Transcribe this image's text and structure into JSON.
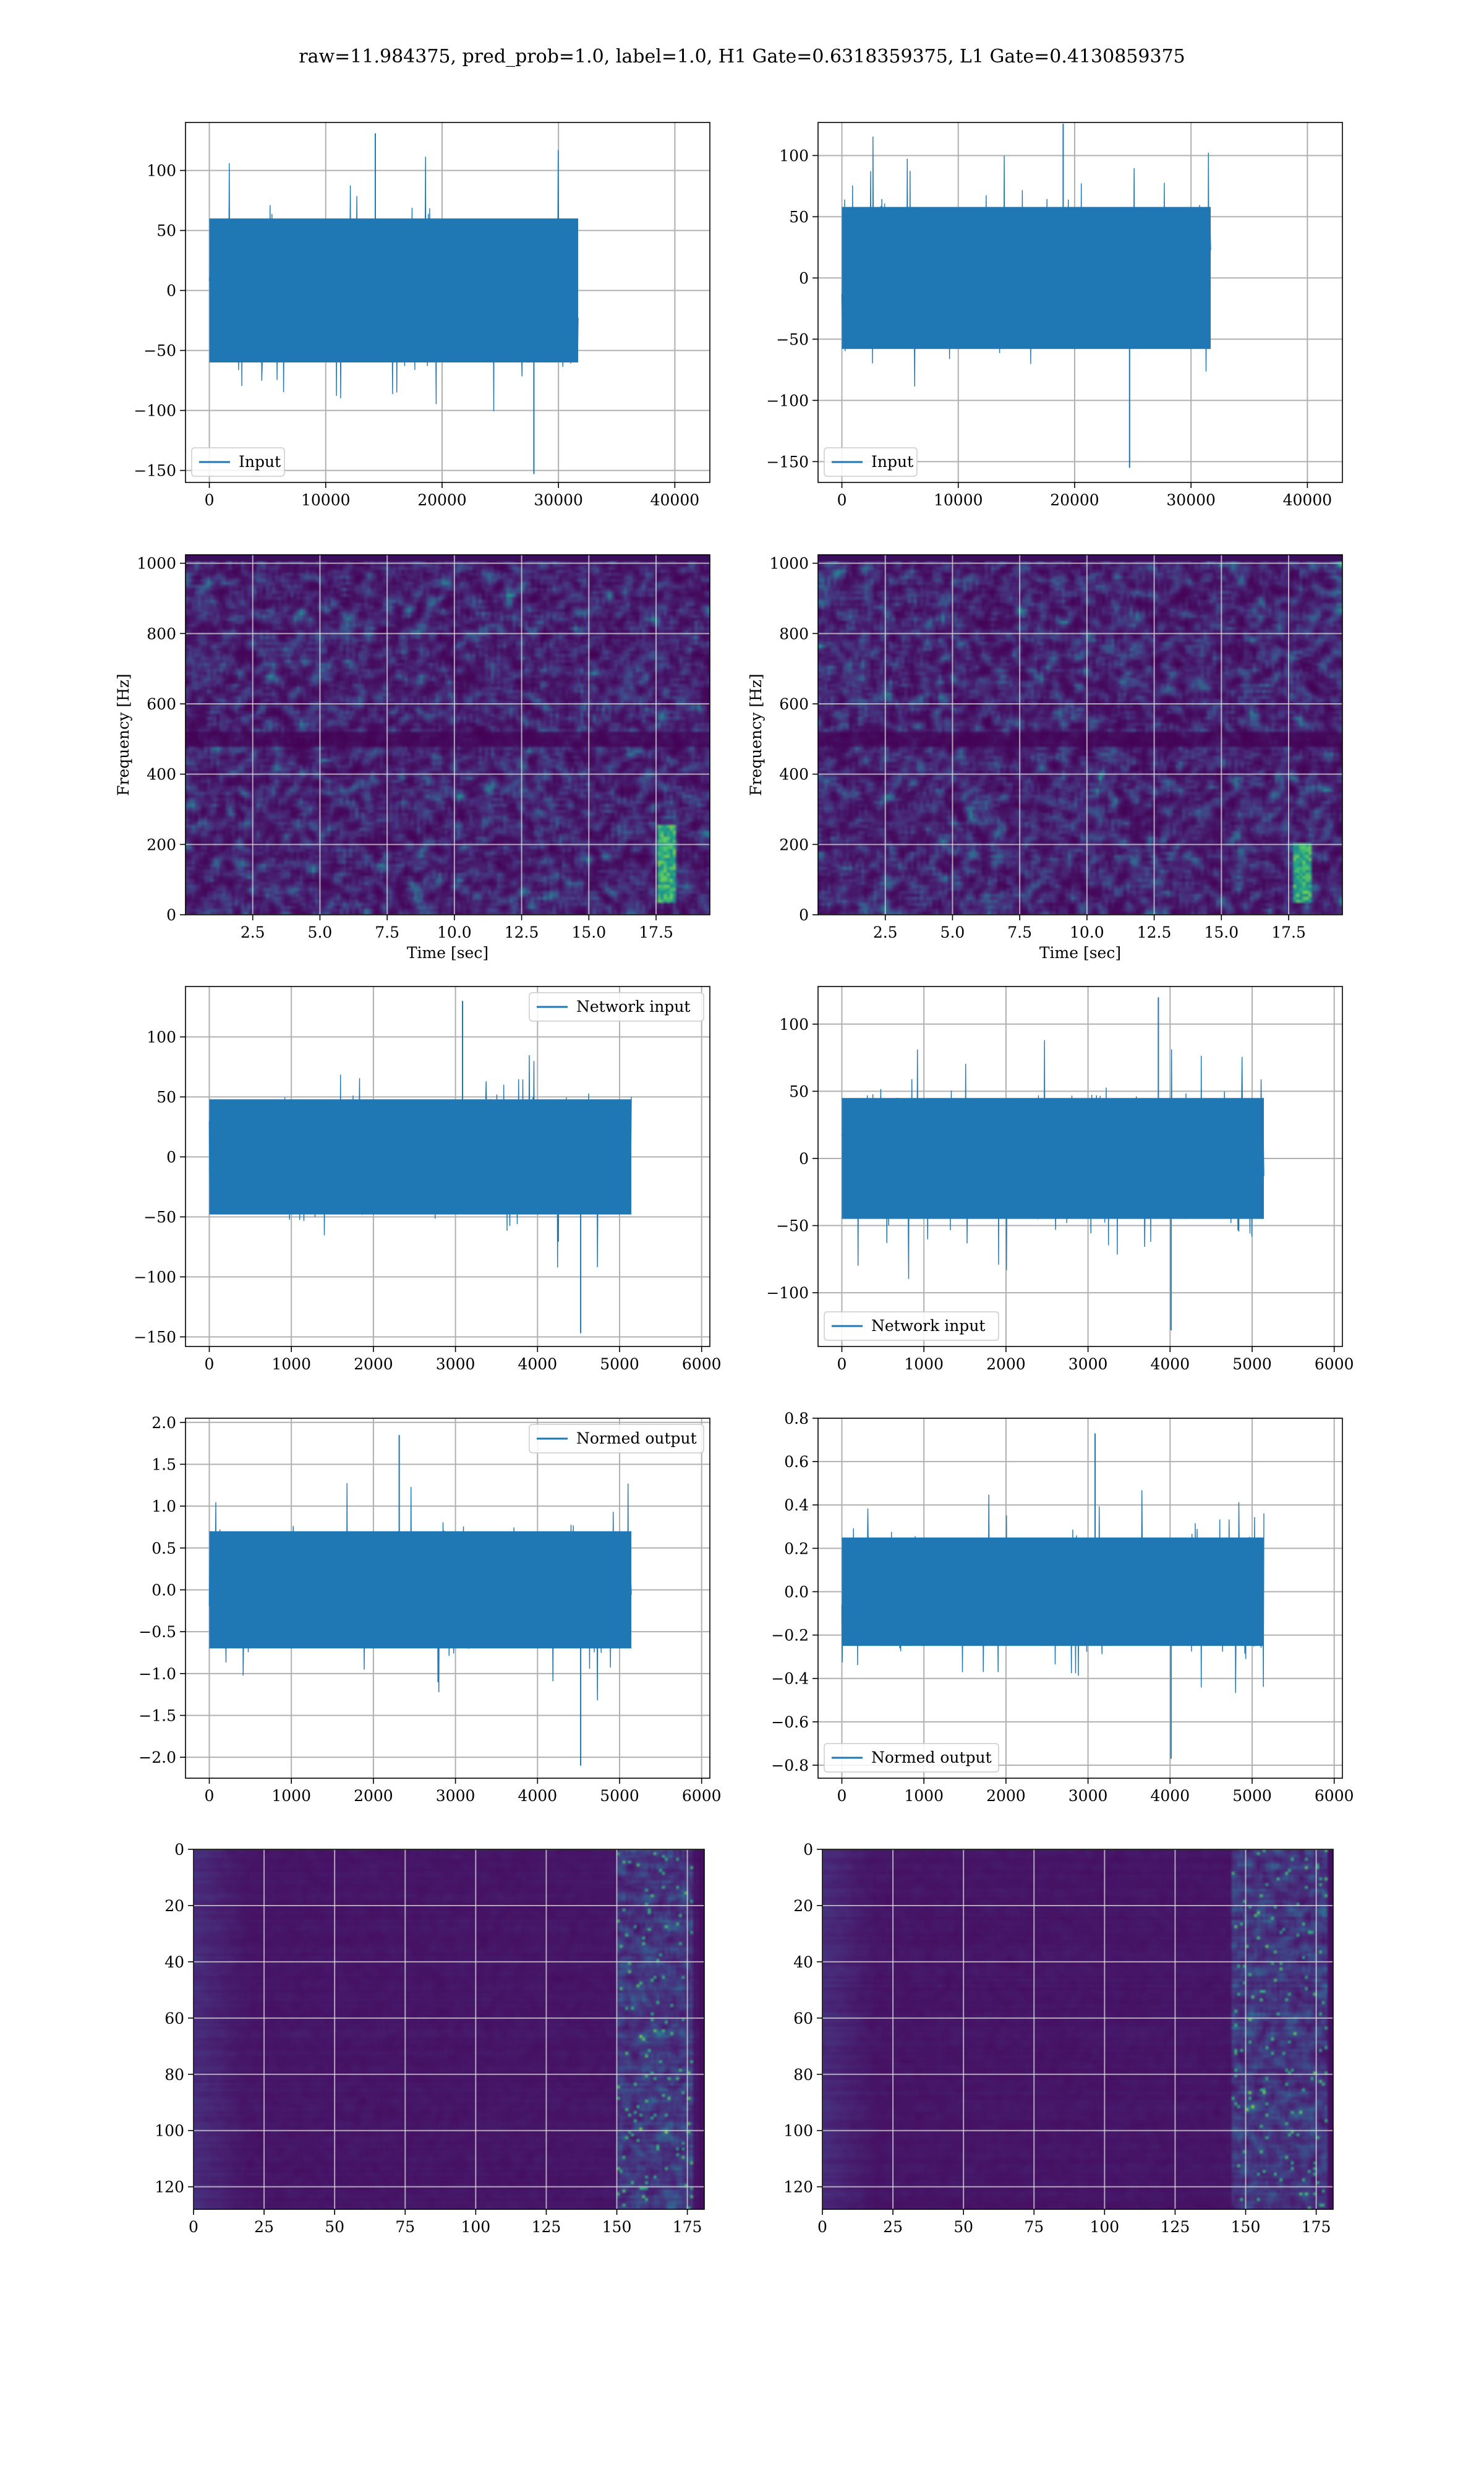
{
  "figure": {
    "suptitle": "raw=11.984375, pred_prob=1.0, label=1.0, H1 Gate=0.6318359375, L1 Gate=0.4130859375"
  },
  "colors": {
    "line": "#1f77b4",
    "grid": "#b0b0b0",
    "axes": "#000000"
  },
  "chart_data": [
    {
      "type": "line",
      "series": [
        {
          "name": "Input"
        }
      ],
      "xlim": [
        -2048,
        43008
      ],
      "ylim": [
        -160,
        140
      ],
      "xticks": [
        0,
        10000,
        20000,
        30000,
        40000
      ],
      "xticklabels": [
        "0",
        "10000",
        "20000",
        "30000",
        "40000"
      ],
      "yticks": [
        -150,
        -100,
        -50,
        0,
        50,
        100
      ],
      "yticklabels": [
        "−150",
        "−100",
        "−50",
        "0",
        "50",
        "100"
      ],
      "amplitude": {
        "core_abs": 60,
        "peak_max": 131,
        "peak_min": -153
      },
      "grid": true,
      "legend": "lower left",
      "xlabel": "",
      "ylabel": ""
    },
    {
      "type": "line",
      "series": [
        {
          "name": "Input"
        }
      ],
      "xlim": [
        -2048,
        43008
      ],
      "ylim": [
        -167,
        127
      ],
      "xticks": [
        0,
        10000,
        20000,
        30000,
        40000
      ],
      "xticklabels": [
        "0",
        "10000",
        "20000",
        "30000",
        "40000"
      ],
      "yticks": [
        -150,
        -100,
        -50,
        0,
        50,
        100
      ],
      "yticklabels": [
        "−150",
        "−100",
        "−50",
        "0",
        "50",
        "100"
      ],
      "amplitude": {
        "core_abs": 58,
        "peak_max": 126,
        "peak_min": -155
      },
      "grid": true,
      "legend": "lower left",
      "xlabel": "",
      "ylabel": ""
    },
    {
      "type": "heatmap",
      "colormap": "viridis",
      "xlim": [
        0,
        19.5
      ],
      "ylim": [
        0,
        1024
      ],
      "xticks": [
        2.5,
        5.0,
        7.5,
        10.0,
        12.5,
        15.0,
        17.5
      ],
      "xticklabels": [
        "2.5",
        "5.0",
        "7.5",
        "10.0",
        "12.5",
        "15.0",
        "17.5"
      ],
      "yticks": [
        0,
        200,
        400,
        600,
        800,
        1000
      ],
      "yticklabels": [
        "0",
        "200",
        "400",
        "600",
        "800",
        "1000"
      ],
      "xlabel": "Time [sec]",
      "ylabel": "Frequency [Hz]",
      "grid": true,
      "features": [
        {
          "kind": "dark band",
          "freq_hz": 500
        },
        {
          "kind": "bright track",
          "time_sec": 17.9,
          "freq_hz_range": [
            30,
            250
          ]
        }
      ]
    },
    {
      "type": "heatmap",
      "colormap": "viridis",
      "xlim": [
        0,
        19.5
      ],
      "ylim": [
        0,
        1024
      ],
      "xticks": [
        2.5,
        5.0,
        7.5,
        10.0,
        12.5,
        15.0,
        17.5
      ],
      "xticklabels": [
        "2.5",
        "5.0",
        "7.5",
        "10.0",
        "12.5",
        "15.0",
        "17.5"
      ],
      "yticks": [
        0,
        200,
        400,
        600,
        800,
        1000
      ],
      "yticklabels": [
        "0",
        "200",
        "400",
        "600",
        "800",
        "1000"
      ],
      "xlabel": "Time [sec]",
      "ylabel": "Frequency [Hz]",
      "grid": true,
      "features": [
        {
          "kind": "dark band",
          "freq_hz": 500
        },
        {
          "kind": "bright track",
          "time_sec": 18.1,
          "freq_hz_range": [
            30,
            200
          ]
        }
      ]
    },
    {
      "type": "line",
      "series": [
        {
          "name": "Network input"
        }
      ],
      "xlim": [
        -290,
        6100
      ],
      "ylim": [
        -158,
        142
      ],
      "xticks": [
        0,
        1000,
        2000,
        3000,
        4000,
        5000,
        6000
      ],
      "xticklabels": [
        "0",
        "1000",
        "2000",
        "3000",
        "4000",
        "5000",
        "6000"
      ],
      "yticks": [
        -150,
        -100,
        -50,
        0,
        50,
        100
      ],
      "yticklabels": [
        "−150",
        "−100",
        "−50",
        "0",
        "50",
        "100"
      ],
      "amplitude": {
        "core_abs": 48,
        "peak_max": 130,
        "peak_min": -147
      },
      "grid": true,
      "legend": "upper right",
      "xlabel": "",
      "ylabel": ""
    },
    {
      "type": "line",
      "series": [
        {
          "name": "Network input"
        }
      ],
      "xlim": [
        -290,
        6100
      ],
      "ylim": [
        -140,
        128
      ],
      "xticks": [
        0,
        1000,
        2000,
        3000,
        4000,
        5000,
        6000
      ],
      "xticklabels": [
        "0",
        "1000",
        "2000",
        "3000",
        "4000",
        "5000",
        "6000"
      ],
      "yticks": [
        -100,
        -50,
        0,
        50,
        100
      ],
      "yticklabels": [
        "−100",
        "−50",
        "0",
        "50",
        "100"
      ],
      "amplitude": {
        "core_abs": 45,
        "peak_max": 120,
        "peak_min": -128
      },
      "grid": true,
      "legend": "lower left",
      "xlabel": "",
      "ylabel": ""
    },
    {
      "type": "line",
      "series": [
        {
          "name": "Normed output"
        }
      ],
      "xlim": [
        -290,
        6100
      ],
      "ylim": [
        -2.25,
        2.05
      ],
      "xticks": [
        0,
        1000,
        2000,
        3000,
        4000,
        5000,
        6000
      ],
      "xticklabels": [
        "0",
        "1000",
        "2000",
        "3000",
        "4000",
        "5000",
        "6000"
      ],
      "yticks": [
        -2.0,
        -1.5,
        -1.0,
        -0.5,
        0.0,
        0.5,
        1.0,
        1.5,
        2.0
      ],
      "yticklabels": [
        "−2.0",
        "−1.5",
        "−1.0",
        "−0.5",
        "0.0",
        "0.5",
        "1.0",
        "1.5",
        "2.0"
      ],
      "amplitude": {
        "core_abs": 0.7,
        "peak_max": 1.85,
        "peak_min": -2.1
      },
      "grid": true,
      "legend": "upper right",
      "xlabel": "",
      "ylabel": ""
    },
    {
      "type": "line",
      "series": [
        {
          "name": "Normed output"
        }
      ],
      "xlim": [
        -290,
        6100
      ],
      "ylim": [
        -0.86,
        0.8
      ],
      "xticks": [
        0,
        1000,
        2000,
        3000,
        4000,
        5000,
        6000
      ],
      "xticklabels": [
        "0",
        "1000",
        "2000",
        "3000",
        "4000",
        "5000",
        "6000"
      ],
      "yticks": [
        -0.8,
        -0.6,
        -0.4,
        -0.2,
        0.0,
        0.2,
        0.4,
        0.6,
        0.8
      ],
      "yticklabels": [
        "−0.8",
        "−0.6",
        "−0.4",
        "−0.2",
        "0.0",
        "0.2",
        "0.4",
        "0.6",
        "0.8"
      ],
      "amplitude": {
        "core_abs": 0.25,
        "peak_max": 0.73,
        "peak_min": -0.77
      },
      "grid": true,
      "legend": "lower left",
      "xlabel": "",
      "ylabel": ""
    },
    {
      "type": "heatmap",
      "colormap": "viridis",
      "xlim": [
        0,
        181
      ],
      "ylim": [
        128,
        0
      ],
      "xticks": [
        0,
        25,
        50,
        75,
        100,
        125,
        150,
        175
      ],
      "xticklabels": [
        "0",
        "25",
        "50",
        "75",
        "100",
        "125",
        "150",
        "175"
      ],
      "yticks": [
        0,
        20,
        40,
        60,
        80,
        100,
        120
      ],
      "yticklabels": [
        "0",
        "20",
        "40",
        "60",
        "80",
        "100",
        "120"
      ],
      "xlabel": "",
      "ylabel": "",
      "grid": true,
      "features": [
        {
          "kind": "bright activity",
          "x_range": [
            150,
            176
          ]
        }
      ]
    },
    {
      "type": "heatmap",
      "colormap": "viridis",
      "xlim": [
        0,
        181
      ],
      "ylim": [
        128,
        0
      ],
      "xticks": [
        0,
        25,
        50,
        75,
        100,
        125,
        150,
        175
      ],
      "xticklabels": [
        "0",
        "25",
        "50",
        "75",
        "100",
        "125",
        "150",
        "175"
      ],
      "yticks": [
        0,
        20,
        40,
        60,
        80,
        100,
        120
      ],
      "yticklabels": [
        "0",
        "20",
        "40",
        "60",
        "80",
        "100",
        "120"
      ],
      "xlabel": "",
      "ylabel": "",
      "grid": true,
      "features": [
        {
          "kind": "bright activity",
          "x_range": [
            145,
            178
          ]
        }
      ]
    }
  ]
}
